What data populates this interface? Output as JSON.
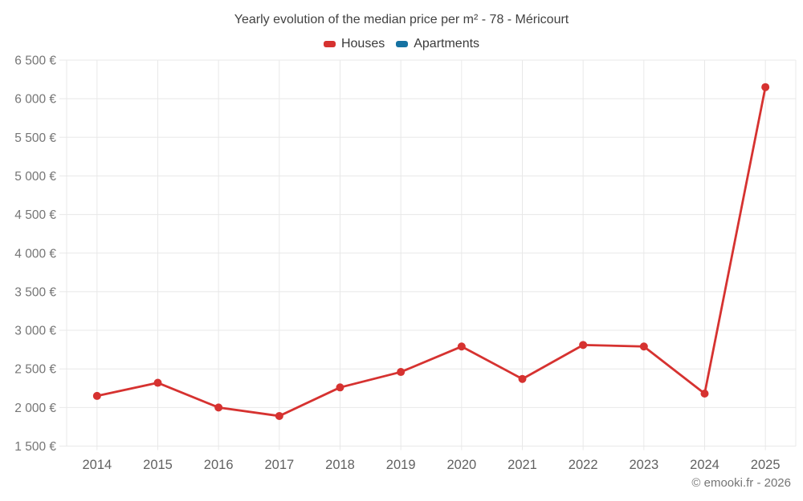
{
  "chart_data": {
    "type": "line",
    "title": "Yearly evolution of the median price per m² - 78 - Méricourt",
    "categories": [
      "2014",
      "2015",
      "2016",
      "2017",
      "2018",
      "2019",
      "2020",
      "2021",
      "2022",
      "2023",
      "2024",
      "2025"
    ],
    "series": [
      {
        "name": "Houses",
        "color": "#d63230",
        "values": [
          2150,
          2320,
          2000,
          1890,
          2260,
          2460,
          2790,
          2370,
          2810,
          2790,
          2180,
          6150
        ]
      },
      {
        "name": "Apartments",
        "color": "#1672a2",
        "values": []
      }
    ],
    "ylabel_suffix": " €",
    "ylim": [
      1500,
      6500
    ],
    "ytick_step": 500,
    "grid": true,
    "grid_color": "#e8e8e8",
    "legend_position": "top"
  },
  "footer": {
    "text": "© emooki.fr - 2026"
  }
}
